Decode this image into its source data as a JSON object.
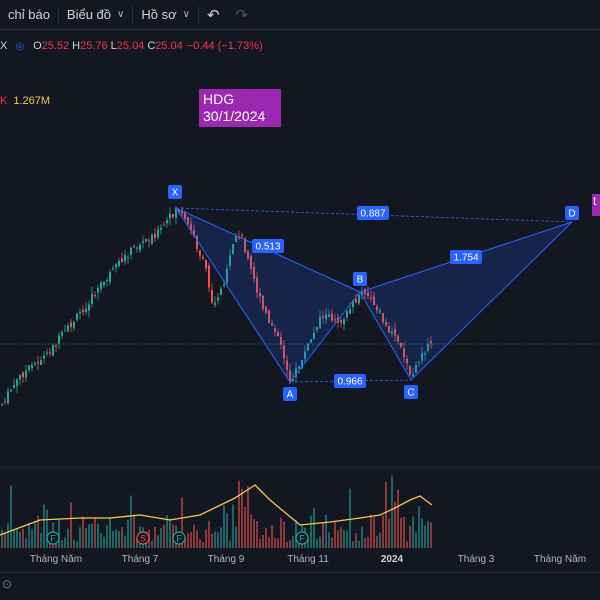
{
  "toolbar": {
    "indicators_label": "chỉ báo",
    "charts_label": "Biểu đồ",
    "profile_label": "Hồ sơ",
    "undo_icon": "undo-icon",
    "redo_icon": "redo-icon"
  },
  "symbol_fragment": "X",
  "ohlc": {
    "o_label": "O",
    "o": "25.52",
    "h_label": "H",
    "h": "25.76",
    "l_label": "L",
    "l": "25.04",
    "c_label": "C",
    "c": "25.04",
    "change": "−0.44 (−1.73%)"
  },
  "volume": {
    "label_fragment": "K",
    "value": "1.267M"
  },
  "annotation": {
    "line1": "HDG",
    "line2": "30/1/2024"
  },
  "edge_badge": "t",
  "pattern": {
    "points": {
      "x": "X",
      "a": "A",
      "b": "B",
      "c": "C",
      "d": "D"
    },
    "ratios": {
      "xa_xb": "0.513",
      "xd": "0.887",
      "bd": "1.754",
      "ac": "0.966"
    }
  },
  "events": [
    "F",
    "S",
    "F",
    "F"
  ],
  "x_axis": [
    "Tháng Năm",
    "Tháng 7",
    "Tháng 9",
    "Tháng 11",
    "2024",
    "Tháng 3",
    "Tháng Năm"
  ],
  "colors": {
    "background": "#131722",
    "up": "#26a69a",
    "down": "#ef5350",
    "pattern": "#2962ff",
    "annotation": "#9c27b0",
    "volume_ma": "#f7c948"
  }
}
